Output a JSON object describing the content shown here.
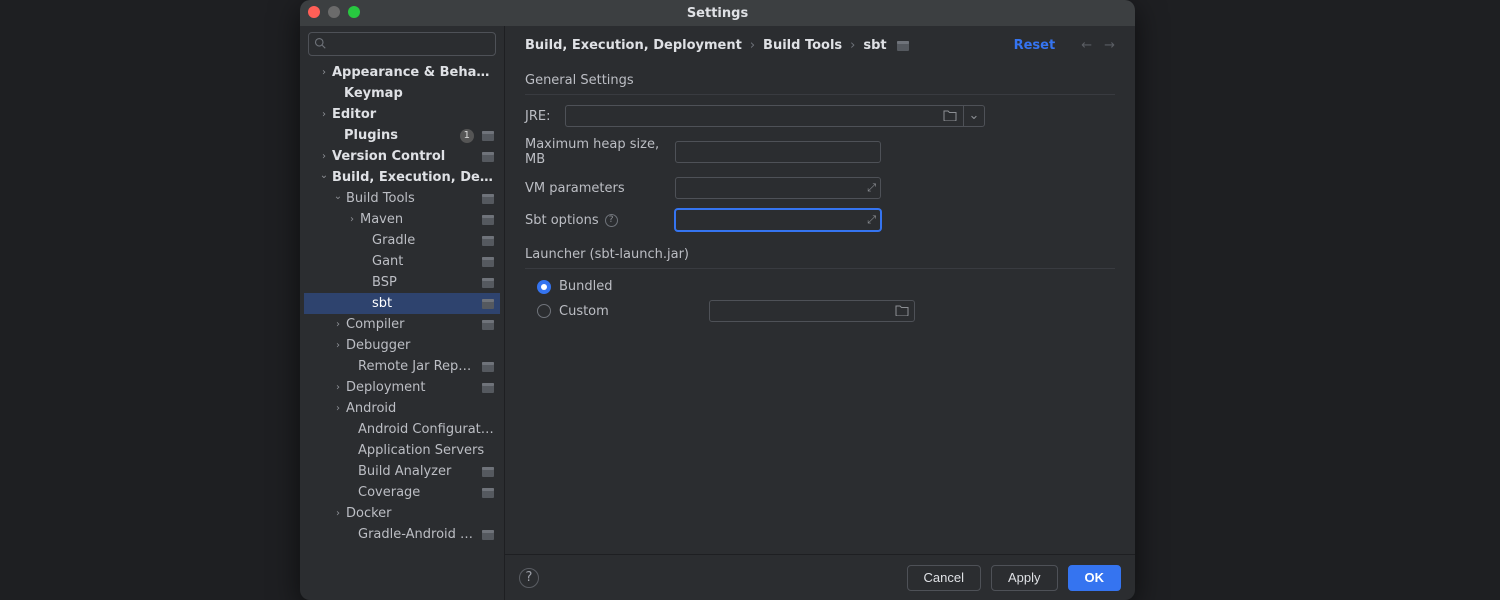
{
  "window": {
    "title": "Settings"
  },
  "search": {
    "placeholder": ""
  },
  "sidebar": {
    "nodes": [
      {
        "label": "Appearance & Behavior",
        "indent": 14,
        "arrow": "right",
        "bold": true
      },
      {
        "label": "Keymap",
        "indent": 26,
        "arrow": "",
        "bold": true
      },
      {
        "label": "Editor",
        "indent": 14,
        "arrow": "right",
        "bold": true
      },
      {
        "label": "Plugins",
        "indent": 26,
        "arrow": "",
        "bold": true,
        "count": "1",
        "proj": true
      },
      {
        "label": "Version Control",
        "indent": 14,
        "arrow": "right",
        "bold": true,
        "proj": true
      },
      {
        "label": "Build, Execution, Deployment",
        "indent": 14,
        "arrow": "down",
        "bold": true
      },
      {
        "label": "Build Tools",
        "indent": 28,
        "arrow": "down",
        "bold": false,
        "proj": true
      },
      {
        "label": "Maven",
        "indent": 42,
        "arrow": "right",
        "bold": false,
        "proj": true
      },
      {
        "label": "Gradle",
        "indent": 54,
        "arrow": "",
        "bold": false,
        "proj": true
      },
      {
        "label": "Gant",
        "indent": 54,
        "arrow": "",
        "bold": false,
        "proj": true
      },
      {
        "label": "BSP",
        "indent": 54,
        "arrow": "",
        "bold": false,
        "proj": true
      },
      {
        "label": "sbt",
        "indent": 54,
        "arrow": "",
        "bold": false,
        "proj": true,
        "selected": true
      },
      {
        "label": "Compiler",
        "indent": 28,
        "arrow": "right",
        "bold": false,
        "proj": true
      },
      {
        "label": "Debugger",
        "indent": 28,
        "arrow": "right",
        "bold": false
      },
      {
        "label": "Remote Jar Repositories",
        "indent": 40,
        "arrow": "",
        "bold": false,
        "proj": true
      },
      {
        "label": "Deployment",
        "indent": 28,
        "arrow": "right",
        "bold": false,
        "proj": true
      },
      {
        "label": "Android",
        "indent": 28,
        "arrow": "right",
        "bold": false
      },
      {
        "label": "Android Configurations",
        "indent": 40,
        "arrow": "",
        "bold": false
      },
      {
        "label": "Application Servers",
        "indent": 40,
        "arrow": "",
        "bold": false
      },
      {
        "label": "Build Analyzer",
        "indent": 40,
        "arrow": "",
        "bold": false,
        "proj": true
      },
      {
        "label": "Coverage",
        "indent": 40,
        "arrow": "",
        "bold": false,
        "proj": true
      },
      {
        "label": "Docker",
        "indent": 28,
        "arrow": "right",
        "bold": false
      },
      {
        "label": "Gradle-Android Compiler",
        "indent": 40,
        "arrow": "",
        "bold": false,
        "proj": true
      }
    ]
  },
  "breadcrumb": {
    "a": "Build, Execution, Deployment",
    "b": "Build Tools",
    "c": "sbt"
  },
  "reset": "Reset",
  "general": {
    "title": "General Settings",
    "jre_label": "JRE:",
    "jre_value": "",
    "heap_label": "Maximum heap size, MB",
    "heap_value": "",
    "vm_label": "VM parameters",
    "vm_value": "",
    "sbt_label": "Sbt options",
    "sbt_value": ""
  },
  "launcher": {
    "title": "Launcher (sbt-launch.jar)",
    "bundled": "Bundled",
    "custom": "Custom",
    "custom_value": ""
  },
  "footer": {
    "cancel": "Cancel",
    "apply": "Apply",
    "ok": "OK"
  },
  "colors": {
    "accent": "#3574f0",
    "selection": "#2e436e",
    "dialog_bg": "#2b2d30",
    "page_bg": "#1e1f22"
  }
}
